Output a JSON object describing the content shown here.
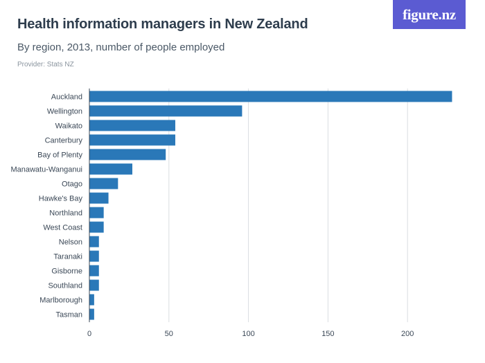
{
  "header": {
    "title": "Health information managers in New Zealand",
    "subtitle": "By region, 2013, number of people employed",
    "provider": "Provider: Stats NZ"
  },
  "logo": {
    "text": "figure.nz",
    "color": "#5b5bd2"
  },
  "colors": {
    "bar": "#2a78b8",
    "grid": "#d9dde1",
    "axis": "#3a4756"
  },
  "chart_data": {
    "type": "bar",
    "orientation": "horizontal",
    "categories": [
      "Auckland",
      "Wellington",
      "Waikato",
      "Canterbury",
      "Bay of Plenty",
      "Manawatu-Wanganui",
      "Otago",
      "Hawke's Bay",
      "Northland",
      "West Coast",
      "Nelson",
      "Taranaki",
      "Gisborne",
      "Southland",
      "Marlborough",
      "Tasman"
    ],
    "values": [
      228,
      96,
      54,
      54,
      48,
      27,
      18,
      12,
      9,
      9,
      6,
      6,
      6,
      6,
      3,
      3
    ],
    "xlim": [
      0,
      240
    ],
    "xticks": [
      0,
      50,
      100,
      150,
      200
    ],
    "grid": true
  }
}
